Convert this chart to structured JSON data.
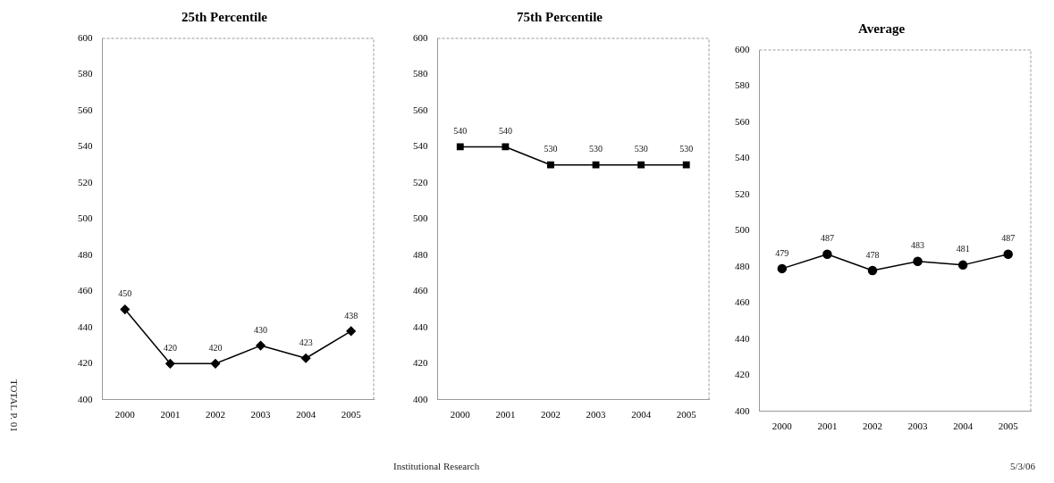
{
  "chart_data": [
    {
      "type": "line",
      "title": "25th Percentile",
      "categories": [
        "2000",
        "2001",
        "2002",
        "2003",
        "2004",
        "2005"
      ],
      "values": [
        450,
        420,
        420,
        430,
        423,
        438
      ],
      "color": "#000000",
      "ylim": [
        400,
        600
      ],
      "yticks": [
        400,
        420,
        440,
        460,
        480,
        500,
        520,
        540,
        560,
        580,
        600
      ],
      "grid": false,
      "legend": false,
      "marker": "diamond",
      "line_style": "solid",
      "data_labels": true,
      "annotations": [
        "TOTAL P. 01"
      ]
    },
    {
      "type": "line",
      "title": "75th Percentile",
      "categories": [
        "2000",
        "2001",
        "2002",
        "2003",
        "2004",
        "2005"
      ],
      "values": [
        540,
        540,
        530,
        530,
        530,
        530
      ],
      "color": "#000000",
      "ylim": [
        400,
        600
      ],
      "yticks": [
        400,
        420,
        440,
        460,
        480,
        500,
        520,
        540,
        560,
        580,
        600
      ],
      "grid": false,
      "legend": false,
      "marker": "square",
      "line_style": "solid",
      "data_labels": true,
      "annotations": [
        "Institutional Research"
      ]
    },
    {
      "type": "line",
      "title": "Average",
      "categories": [
        "2000",
        "2001",
        "2002",
        "2003",
        "2004",
        "2005"
      ],
      "values": [
        479,
        487,
        478,
        483,
        481,
        487
      ],
      "color": "#000000",
      "ylim": [
        400,
        600
      ],
      "yticks": [
        400,
        420,
        440,
        460,
        480,
        500,
        520,
        540,
        560,
        580,
        600
      ],
      "grid": false,
      "legend": false,
      "marker": "circle",
      "line_style": "solid",
      "data_labels": true,
      "annotations": [
        "5/3/06"
      ]
    }
  ]
}
